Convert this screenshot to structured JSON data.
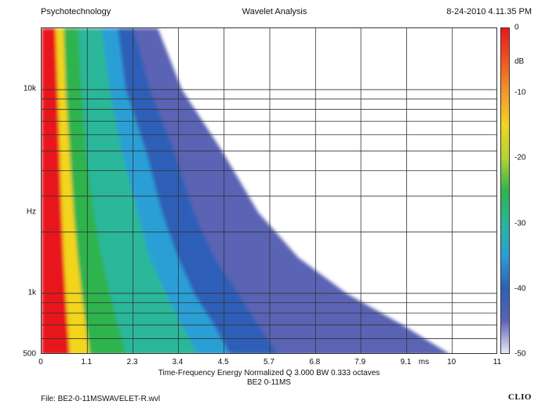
{
  "header": {
    "left": "Psychotechnology",
    "center": "Wavelet Analysis",
    "right": "8-24-2010 4.11.35 PM"
  },
  "chart_data": {
    "type": "heatmap",
    "title": "Wavelet Analysis",
    "xlabel": "ms",
    "ylabel": "Hz",
    "x_ticks": [
      "0",
      "1.1",
      "2.3",
      "3.4",
      "4.5",
      "5.7",
      "6.8",
      "7.9",
      "9.1",
      "ms",
      "10",
      "11"
    ],
    "x_tick_values": [
      0,
      1.14,
      2.28,
      3.41,
      4.55,
      5.69,
      6.83,
      7.96,
      9.1,
      9.55,
      10.24,
      11.38
    ],
    "xlim": [
      0,
      11.38
    ],
    "y_scale": "log",
    "y_ticks": [
      "10k",
      "Hz",
      "1k",
      "500"
    ],
    "y_tick_values": [
      10000,
      2500,
      1000,
      500
    ],
    "ylim": [
      500,
      20000
    ],
    "colorbar": {
      "unit": "dB",
      "ticks": [
        "0",
        "-10",
        "-20",
        "-30",
        "-40",
        "-50"
      ],
      "range": [
        -50,
        0
      ],
      "colors": [
        "#e8181e",
        "#f49a2a",
        "#f2d51f",
        "#b2d334",
        "#2fb34d",
        "#29b79a",
        "#2a9fd6",
        "#2d5fb8",
        "#5a63b4",
        "#e8e8f4"
      ]
    },
    "ridge_decay_ms": [
      {
        "freq_hz": 20000,
        "t_ms": [
          0.35,
          0.55,
          0.9,
          1.2,
          1.5,
          1.9,
          2.3,
          2.9
        ]
      },
      {
        "freq_hz": 10000,
        "t_ms": [
          0.4,
          0.6,
          1.0,
          1.3,
          1.7,
          2.1,
          2.7,
          3.5
        ]
      },
      {
        "freq_hz": 5000,
        "t_ms": [
          0.45,
          0.7,
          1.1,
          1.6,
          2.0,
          2.6,
          3.3,
          4.5
        ]
      },
      {
        "freq_hz": 2500,
        "t_ms": [
          0.5,
          0.8,
          1.3,
          1.8,
          2.4,
          3.0,
          3.8,
          5.4
        ]
      },
      {
        "freq_hz": 1500,
        "t_ms": [
          0.55,
          0.9,
          1.5,
          2.1,
          2.7,
          3.4,
          4.3,
          6.4
        ]
      },
      {
        "freq_hz": 1000,
        "t_ms": [
          0.6,
          1.0,
          1.7,
          2.4,
          3.1,
          3.8,
          4.9,
          7.6
        ]
      },
      {
        "freq_hz": 700,
        "t_ms": [
          0.65,
          1.1,
          1.9,
          2.7,
          3.5,
          4.3,
          5.4,
          9.0
        ]
      },
      {
        "freq_hz": 500,
        "t_ms": [
          0.7,
          1.2,
          2.1,
          3.0,
          3.9,
          4.7,
          5.9,
          10.2
        ]
      }
    ],
    "ridge_levels_db": [
      0,
      -10,
      -20,
      -25,
      -30,
      -35,
      -40,
      -45
    ],
    "grid": true
  },
  "captions": {
    "line1": "Time-Frequency Energy  Normalized  Q 3.000 BW 0.333 octaves",
    "line2": "BE2 0-11MS"
  },
  "footer": {
    "file": "File: BE2-0-11MSWAVELET-R.wvl",
    "brand": "CLIO"
  }
}
